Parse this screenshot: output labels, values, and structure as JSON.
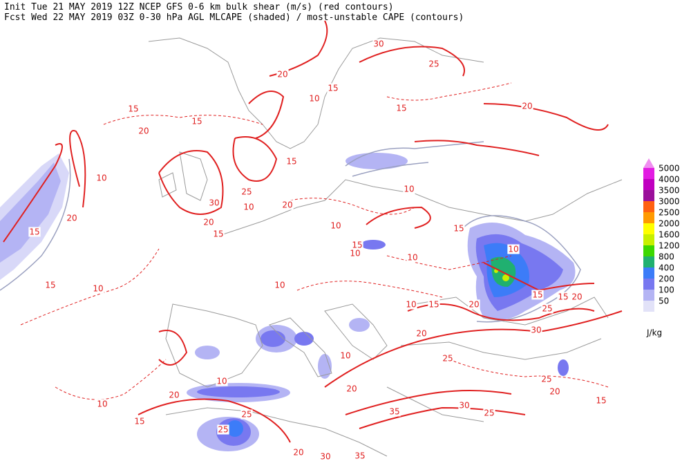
{
  "header": {
    "line1": "Init  Tue 21 MAY 2019 12Z  NCEP GFS 0-6 km bulk shear (m/s) (red contours)",
    "line2": "Fcst Wed 22 MAY 2019 03Z  0-30 hPa AGL MLCAPE (shaded) / most-unstable CAPE (contours)"
  },
  "colorbar": {
    "unit": "J/kg",
    "over_color": "#f08ef0",
    "levels": [
      {
        "value": 5000,
        "color": "#e21ce2"
      },
      {
        "value": 4000,
        "color": "#c000c0"
      },
      {
        "value": 3500,
        "color": "#9a109a"
      },
      {
        "value": 3000,
        "color": "#ff6010"
      },
      {
        "value": 2500,
        "color": "#ff9a00"
      },
      {
        "value": 2000,
        "color": "#ffff00"
      },
      {
        "value": 1600,
        "color": "#c8f000"
      },
      {
        "value": 1200,
        "color": "#3cd800"
      },
      {
        "value": 800,
        "color": "#20b070"
      },
      {
        "value": 400,
        "color": "#3c7cf8"
      },
      {
        "value": 200,
        "color": "#7878f0"
      },
      {
        "value": 100,
        "color": "#b4b4f4"
      },
      {
        "value": 50,
        "color": "#e2e2f8"
      }
    ]
  },
  "contour_labels": [
    30,
    25,
    20,
    15,
    15,
    15,
    10,
    15,
    20,
    20,
    15,
    10,
    25,
    30,
    20,
    10,
    20,
    15,
    20,
    15,
    10,
    10,
    15,
    10,
    15,
    10,
    10,
    10,
    10,
    15,
    10,
    15,
    20,
    15,
    15,
    20,
    25,
    30,
    20,
    25,
    10,
    10,
    20,
    35,
    30,
    25,
    20,
    25,
    20,
    15,
    10,
    15,
    25,
    25,
    20,
    30,
    35
  ]
}
